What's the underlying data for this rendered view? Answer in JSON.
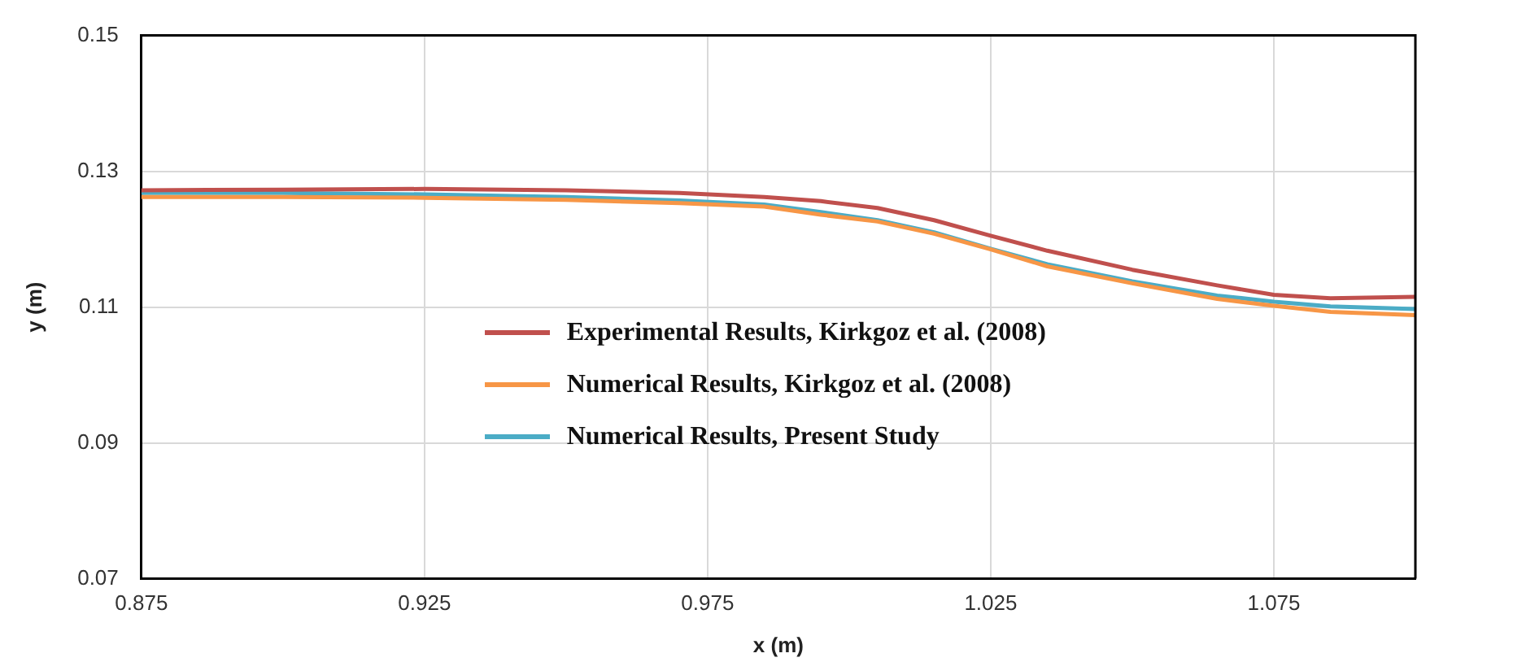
{
  "chart_data": {
    "type": "line",
    "xlabel": "x (m)",
    "ylabel": "y (m)",
    "xlim": [
      0.875,
      1.1
    ],
    "xticks": [
      0.875,
      0.925,
      0.975,
      1.025,
      1.075
    ],
    "ylim": [
      0.07,
      0.15
    ],
    "yticks": [
      0.07,
      0.09,
      0.11,
      0.13,
      0.15
    ],
    "grid": true,
    "legend": "center",
    "line_style": "solid",
    "marker": "none",
    "series": [
      {
        "name": "Experimental Results, Kirkgoz et al. (2008)",
        "color": "#c0504d",
        "x": [
          0.875,
          0.9,
          0.925,
          0.95,
          0.97,
          0.985,
          0.995,
          1.005,
          1.015,
          1.025,
          1.035,
          1.05,
          1.065,
          1.075,
          1.085,
          1.1
        ],
        "values": [
          0.1272,
          0.1273,
          0.1274,
          0.1272,
          0.1268,
          0.1262,
          0.1256,
          0.1246,
          0.1228,
          0.1205,
          0.1183,
          0.1155,
          0.1132,
          0.1118,
          0.1113,
          0.1115
        ]
      },
      {
        "name": "Numerical Results, Kirkgoz et al. (2008)",
        "color": "#f79646",
        "x": [
          0.875,
          0.9,
          0.925,
          0.95,
          0.97,
          0.985,
          0.995,
          1.005,
          1.015,
          1.025,
          1.035,
          1.05,
          1.065,
          1.075,
          1.085,
          1.1
        ],
        "values": [
          0.1262,
          0.1262,
          0.1261,
          0.1258,
          0.1253,
          0.1248,
          0.1236,
          0.1226,
          0.1208,
          0.1185,
          0.116,
          0.1135,
          0.1112,
          0.1102,
          0.1093,
          0.1088
        ]
      },
      {
        "name": "Numerical Results, Present Study",
        "color": "#4bacc6",
        "x": [
          0.875,
          0.9,
          0.925,
          0.95,
          0.97,
          0.985,
          0.995,
          1.005,
          1.015,
          1.025,
          1.035,
          1.05,
          1.065,
          1.075,
          1.085,
          1.1
        ],
        "values": [
          0.1268,
          0.1268,
          0.1266,
          0.1262,
          0.1257,
          0.1251,
          0.124,
          0.1228,
          0.121,
          0.1186,
          0.1163,
          0.1138,
          0.1117,
          0.1108,
          0.1101,
          0.1097
        ]
      }
    ]
  }
}
